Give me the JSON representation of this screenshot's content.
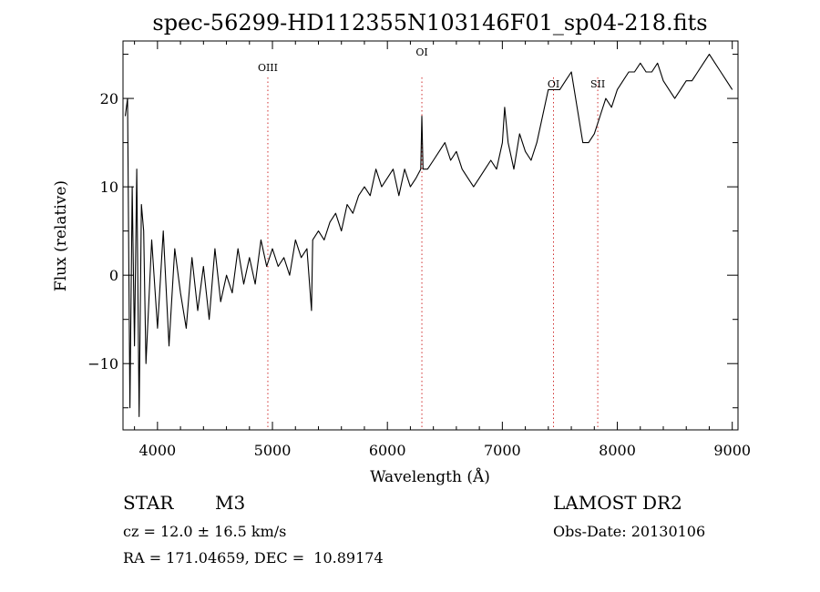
{
  "chart_data": {
    "type": "line",
    "title": "spec-56299-HD112355N103146F01_sp04-218.fits",
    "xlabel": "Wavelength (Å)",
    "ylabel": "Flux (relative)",
    "xlim": [
      3700,
      9050
    ],
    "ylim": [
      -17.5,
      26.5
    ],
    "xticks": [
      4000,
      5000,
      6000,
      7000,
      8000,
      9000
    ],
    "yticks": [
      -10,
      0,
      10,
      20
    ],
    "xtick_labels": [
      "4000",
      "5000",
      "6000",
      "7000",
      "8000",
      "9000"
    ],
    "ytick_labels": [
      "−10",
      "0",
      "10",
      "20"
    ],
    "grid": false,
    "series": [
      {
        "x": [
          3720,
          3740,
          3760,
          3780,
          3800,
          3820,
          3840,
          3860,
          3880,
          3900,
          3950,
          4000,
          4050,
          4100,
          4150,
          4200,
          4250,
          4300,
          4350,
          4400,
          4450,
          4500,
          4550,
          4600,
          4650,
          4700,
          4750,
          4800,
          4850,
          4900,
          4950,
          5000,
          5050,
          5100,
          5150,
          5200,
          5250,
          5300,
          5340,
          5350,
          5400,
          5450,
          5500,
          5550,
          5600,
          5650,
          5700,
          5750,
          5800,
          5850,
          5900,
          5950,
          6000,
          6050,
          6100,
          6150,
          6200,
          6250,
          6290,
          6300,
          6310,
          6350,
          6400,
          6450,
          6500,
          6550,
          6600,
          6650,
          6700,
          6750,
          6800,
          6850,
          6900,
          6950,
          7000,
          7020,
          7050,
          7100,
          7150,
          7200,
          7250,
          7300,
          7350,
          7400,
          7450,
          7500,
          7550,
          7600,
          7650,
          7700,
          7750,
          7800,
          7850,
          7900,
          7950,
          8000,
          8050,
          8100,
          8150,
          8200,
          8250,
          8300,
          8350,
          8400,
          8450,
          8500,
          8550,
          8600,
          8650,
          8700,
          8750,
          8800,
          8850,
          8900,
          8950,
          9000
        ],
        "y": [
          18,
          20,
          -15,
          10,
          -8,
          12,
          -16,
          8,
          5,
          -10,
          4,
          -6,
          5,
          -8,
          3,
          -2,
          -6,
          2,
          -4,
          1,
          -5,
          3,
          -3,
          0,
          -2,
          3,
          -1,
          2,
          -1,
          4,
          1,
          3,
          1,
          2,
          0,
          4,
          2,
          3,
          -4,
          4,
          5,
          4,
          6,
          7,
          5,
          8,
          7,
          9,
          10,
          9,
          12,
          10,
          11,
          12,
          9,
          12,
          10,
          11,
          12,
          18,
          12,
          12,
          13,
          14,
          15,
          13,
          14,
          12,
          11,
          10,
          11,
          12,
          13,
          12,
          15,
          19,
          15,
          12,
          16,
          14,
          13,
          15,
          18,
          21,
          21,
          21,
          22,
          23,
          19,
          15,
          15,
          16,
          18,
          20,
          19,
          21,
          22,
          23,
          23,
          24,
          23,
          23,
          24,
          22,
          21,
          20,
          21,
          22,
          22,
          23,
          24,
          25,
          24,
          23,
          22,
          21
        ]
      }
    ],
    "annotations": [
      {
        "label": "OIII",
        "x": 4960
      },
      {
        "label": "OI",
        "x": 6300
      },
      {
        "label": "OI",
        "x": 7445
      },
      {
        "label": "SII",
        "x": 7830
      }
    ]
  },
  "info": {
    "object_class": "STAR",
    "subclass": "M3",
    "survey": "LAMOST DR2",
    "cz": "cz = 12.0 ± 16.5 km/s",
    "obs_date": "Obs-Date: 20130106",
    "coords": "RA = 171.04659, DEC =  10.89174"
  }
}
